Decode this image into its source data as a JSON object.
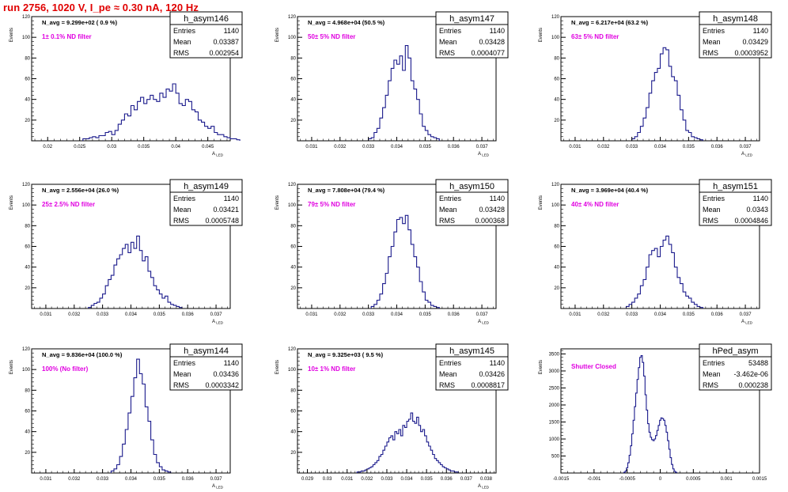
{
  "run_title": "run 2756,  1020 V, I_pe ≈ 0.30 nA, 120 Hz",
  "y_axis_label": "Events",
  "stat_labels": {
    "entries": "Entries",
    "mean": "Mean",
    "rms": "RMS"
  },
  "colors": {
    "histogram": "#1a1a8c",
    "annotation": "#e000e0",
    "title": "#e00000"
  },
  "chart_data": [
    {
      "type": "histogram",
      "name": "h_asym146",
      "navg": "N_avg = 9.299e+02 ( 0.9 %)",
      "filter": "1± 0.1% ND filter",
      "entries": "1140",
      "mean": "0.03387",
      "rms": "0.002954",
      "xlabel": "A_LED",
      "xlim": [
        0.0175,
        0.0485
      ],
      "ylim": [
        0,
        120
      ],
      "xticks": [
        0.02,
        0.025,
        0.03,
        0.035,
        0.04,
        0.045
      ],
      "xtick_labels": [
        "0.02",
        "0.025",
        "0.03",
        "0.035",
        "0.04",
        "0.045"
      ],
      "yticks": [
        20,
        40,
        60,
        80,
        100,
        120
      ],
      "ytick_labels": [
        "20",
        "40",
        "60",
        "80",
        "100",
        "120"
      ],
      "bins": {
        "start": 0.0255,
        "width": 0.0005,
        "counts": [
          2,
          2,
          3,
          4,
          3,
          5,
          5,
          8,
          9,
          6,
          10,
          16,
          20,
          26,
          24,
          34,
          30,
          38,
          42,
          36,
          40,
          44,
          40,
          38,
          46,
          42,
          50,
          48,
          55,
          46,
          36,
          34,
          40,
          38,
          30,
          28,
          20,
          18,
          14,
          12,
          14,
          8,
          6,
          6,
          4,
          3,
          2,
          2,
          1
        ]
      }
    },
    {
      "type": "histogram",
      "name": "h_asym147",
      "navg": "N_avg = 4.968e+04 (50.5 %)",
      "filter": "50± 5% ND filter",
      "entries": "1140",
      "mean": "0.03428",
      "rms": "0.0004077",
      "xlabel": "A_LED",
      "xlim": [
        0.0305,
        0.0375
      ],
      "ylim": [
        0,
        120
      ],
      "xticks": [
        0.031,
        0.032,
        0.033,
        0.034,
        0.035,
        0.036,
        0.037
      ],
      "xtick_labels": [
        "0.031",
        "0.032",
        "0.033",
        "0.034",
        "0.035",
        "0.036",
        "0.037"
      ],
      "yticks": [
        20,
        40,
        60,
        80,
        100,
        120
      ],
      "ytick_labels": [
        "20",
        "40",
        "60",
        "80",
        "100",
        "120"
      ],
      "bins": {
        "start": 0.033,
        "width": 0.0001,
        "counts": [
          2,
          3,
          8,
          12,
          22,
          32,
          44,
          58,
          70,
          78,
          74,
          82,
          68,
          92,
          80,
          58,
          50,
          40,
          26,
          14,
          10,
          6,
          4,
          3,
          2
        ]
      }
    },
    {
      "type": "histogram",
      "name": "h_asym148",
      "navg": "N_avg = 6.217e+04 (63.2 %)",
      "filter": "63± 5% ND filter",
      "entries": "1140",
      "mean": "0.03429",
      "rms": "0.0003952",
      "xlabel": "A_LED",
      "xlim": [
        0.0305,
        0.0375
      ],
      "ylim": [
        0,
        120
      ],
      "xticks": [
        0.031,
        0.032,
        0.033,
        0.034,
        0.035,
        0.036,
        0.037
      ],
      "xtick_labels": [
        "0.031",
        "0.032",
        "0.033",
        "0.034",
        "0.035",
        "0.036",
        "0.037"
      ],
      "yticks": [
        20,
        40,
        60,
        80,
        100,
        120
      ],
      "ytick_labels": [
        "20",
        "40",
        "60",
        "80",
        "100",
        "120"
      ],
      "bins": {
        "start": 0.033,
        "width": 0.0001,
        "counts": [
          2,
          4,
          8,
          14,
          22,
          32,
          46,
          58,
          66,
          70,
          84,
          90,
          88,
          72,
          62,
          58,
          44,
          30,
          20,
          10,
          8,
          4,
          3,
          2,
          1
        ]
      }
    },
    {
      "type": "histogram",
      "name": "h_asym149",
      "navg": "N_avg = 2.556e+04 (26.0 %)",
      "filter": "25± 2.5% ND filter",
      "entries": "1140",
      "mean": "0.03421",
      "rms": "0.0005748",
      "xlabel": "A_LED",
      "xlim": [
        0.0305,
        0.0375
      ],
      "ylim": [
        0,
        120
      ],
      "xticks": [
        0.031,
        0.032,
        0.033,
        0.034,
        0.035,
        0.036,
        0.037
      ],
      "xtick_labels": [
        "0.031",
        "0.032",
        "0.033",
        "0.034",
        "0.035",
        "0.036",
        "0.037"
      ],
      "yticks": [
        20,
        40,
        60,
        80,
        100,
        120
      ],
      "ytick_labels": [
        "20",
        "40",
        "60",
        "80",
        "100",
        "120"
      ],
      "bins": {
        "start": 0.0325,
        "width": 0.0001,
        "counts": [
          1,
          3,
          5,
          6,
          10,
          14,
          22,
          28,
          32,
          42,
          48,
          52,
          58,
          62,
          54,
          64,
          58,
          70,
          56,
          46,
          50,
          36,
          30,
          22,
          18,
          14,
          10,
          12,
          6,
          4,
          3,
          2,
          1
        ]
      }
    },
    {
      "type": "histogram",
      "name": "h_asym150",
      "navg": "N_avg = 7.808e+04 (79.4 %)",
      "filter": "79± 5% ND filter",
      "entries": "1140",
      "mean": "0.03428",
      "rms": "0.000368",
      "xlabel": "A_LED",
      "xlim": [
        0.0305,
        0.0375
      ],
      "ylim": [
        0,
        120
      ],
      "xticks": [
        0.031,
        0.032,
        0.033,
        0.034,
        0.035,
        0.036,
        0.037
      ],
      "xtick_labels": [
        "0.031",
        "0.032",
        "0.033",
        "0.034",
        "0.035",
        "0.036",
        "0.037"
      ],
      "yticks": [
        20,
        40,
        60,
        80,
        100,
        120
      ],
      "ytick_labels": [
        "20",
        "40",
        "60",
        "80",
        "100",
        "120"
      ],
      "bins": {
        "start": 0.0331,
        "width": 0.0001,
        "counts": [
          2,
          4,
          8,
          14,
          24,
          34,
          50,
          60,
          74,
          86,
          88,
          82,
          90,
          76,
          62,
          50,
          40,
          26,
          16,
          8,
          6,
          3,
          2,
          1
        ]
      }
    },
    {
      "type": "histogram",
      "name": "h_asym151",
      "navg": "N_avg = 3.969e+04 (40.4 %)",
      "filter": "40± 4% ND filter",
      "entries": "1140",
      "mean": "0.0343",
      "rms": "0.0004846",
      "xlabel": "A_LED",
      "xlim": [
        0.0305,
        0.0375
      ],
      "ylim": [
        0,
        120
      ],
      "xticks": [
        0.031,
        0.032,
        0.033,
        0.034,
        0.035,
        0.036,
        0.037
      ],
      "xtick_labels": [
        "0.031",
        "0.032",
        "0.033",
        "0.034",
        "0.035",
        "0.036",
        "0.037"
      ],
      "yticks": [
        20,
        40,
        60,
        80,
        100,
        120
      ],
      "ytick_labels": [
        "20",
        "40",
        "60",
        "80",
        "100",
        "120"
      ],
      "bins": {
        "start": 0.0328,
        "width": 0.0001,
        "counts": [
          2,
          4,
          6,
          10,
          14,
          22,
          28,
          40,
          52,
          56,
          58,
          50,
          60,
          66,
          70,
          62,
          54,
          40,
          30,
          24,
          16,
          12,
          10,
          6,
          4,
          2,
          1
        ]
      }
    },
    {
      "type": "histogram",
      "name": "h_asym144",
      "navg": "N_avg = 9.836e+04 (100.0 %)",
      "filter": "100% (No filter)",
      "entries": "1140",
      "mean": "0.03436",
      "rms": "0.0003342",
      "xlabel": "A_LED",
      "xlim": [
        0.0305,
        0.0375
      ],
      "ylim": [
        0,
        120
      ],
      "xticks": [
        0.031,
        0.032,
        0.033,
        0.034,
        0.035,
        0.036,
        0.037
      ],
      "xtick_labels": [
        "0.031",
        "0.032",
        "0.033",
        "0.034",
        "0.035",
        "0.036",
        "0.037"
      ],
      "yticks": [
        20,
        40,
        60,
        80,
        100,
        120
      ],
      "ytick_labels": [
        "20",
        "40",
        "60",
        "80",
        "100",
        "120"
      ],
      "bins": {
        "start": 0.0333,
        "width": 0.0001,
        "counts": [
          2,
          4,
          8,
          16,
          28,
          42,
          58,
          74,
          92,
          110,
          96,
          86,
          64,
          50,
          32,
          18,
          10,
          6,
          3,
          2,
          1
        ]
      }
    },
    {
      "type": "histogram",
      "name": "h_asym145",
      "navg": "N_avg = 9.325e+03 ( 9.5 %)",
      "filter": "10± 1% ND filter",
      "entries": "1140",
      "mean": "0.03426",
      "rms": "0.0008817",
      "xlabel": "A_LED",
      "xlim": [
        0.0285,
        0.0385
      ],
      "ylim": [
        0,
        120
      ],
      "xticks": [
        0.029,
        0.03,
        0.031,
        0.032,
        0.033,
        0.034,
        0.035,
        0.036,
        0.037,
        0.038
      ],
      "xtick_labels": [
        "0.029",
        "0.03",
        "0.031",
        "0.032",
        "0.033",
        "0.034",
        "0.035",
        "0.036",
        "0.037",
        "0.038"
      ],
      "yticks": [
        20,
        40,
        60,
        80,
        100,
        120
      ],
      "ytick_labels": [
        "20",
        "40",
        "60",
        "80",
        "100",
        "120"
      ],
      "bins": {
        "start": 0.0315,
        "width": 0.0001,
        "counts": [
          1,
          1,
          2,
          2,
          3,
          4,
          5,
          6,
          8,
          10,
          12,
          16,
          18,
          22,
          26,
          30,
          34,
          36,
          32,
          40,
          38,
          42,
          36,
          46,
          44,
          50,
          52,
          58,
          50,
          48,
          54,
          46,
          40,
          42,
          36,
          30,
          26,
          22,
          18,
          14,
          12,
          10,
          8,
          6,
          5,
          4,
          3,
          2,
          2,
          1,
          1
        ]
      }
    },
    {
      "type": "histogram",
      "name": "hPed_asym",
      "navg": "",
      "filter": "Shutter Closed",
      "entries": "53488",
      "mean": "-3.462e-06",
      "rms": "0.000238",
      "xlabel": "",
      "xlim": [
        -0.0015,
        0.0015
      ],
      "ylim": [
        0,
        3650
      ],
      "xticks": [
        -0.0015,
        -0.001,
        -0.0005,
        0,
        0.0005,
        0.001,
        0.0015
      ],
      "xtick_labels": [
        "-0.0015",
        "-0.001",
        "-0.0005",
        "0",
        "0.0005",
        "0.001",
        "0.0015"
      ],
      "yticks": [
        500,
        1000,
        1500,
        2000,
        2500,
        3000,
        3500
      ],
      "ytick_labels": [
        "500",
        "1000",
        "1500",
        "2000",
        "2500",
        "3000",
        "3500"
      ],
      "bins": {
        "start": -0.00055,
        "width": 2e-05,
        "counts": [
          20,
          60,
          150,
          300,
          520,
          800,
          1150,
          1550,
          1950,
          2350,
          2750,
          3100,
          3400,
          3450,
          3250,
          2850,
          2300,
          1850,
          1450,
          1200,
          1050,
          980,
          950,
          1000,
          1100,
          1250,
          1400,
          1550,
          1620,
          1600,
          1550,
          1400,
          1200,
          950,
          700,
          450,
          250,
          120,
          50,
          20
        ]
      }
    }
  ]
}
